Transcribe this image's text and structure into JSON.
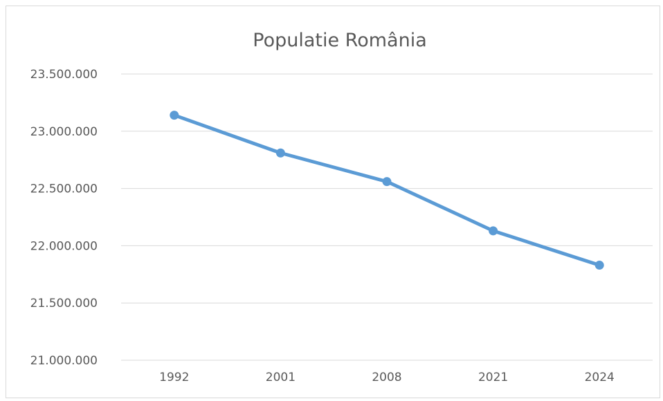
{
  "chart_data": {
    "type": "line",
    "title": "Populatie România",
    "xlabel": "",
    "ylabel": "",
    "categories": [
      "1992",
      "2001",
      "2008",
      "2021",
      "2024"
    ],
    "series": [
      {
        "values": [
          23140000,
          22810000,
          22560000,
          22130000,
          21830000
        ]
      }
    ],
    "ylim": [
      21000000,
      23500000
    ],
    "yticks": [
      21000000,
      21500000,
      22000000,
      22500000,
      23000000,
      23500000
    ],
    "ytick_labels": [
      "21.000.000",
      "21.500.000",
      "22.000.000",
      "22.500.000",
      "23.000.000",
      "23.500.000"
    ],
    "grid": true,
    "legend": "none",
    "colors": {
      "series": "#5b9bd5",
      "grid": "#d9d9d9",
      "text": "#595959"
    }
  }
}
